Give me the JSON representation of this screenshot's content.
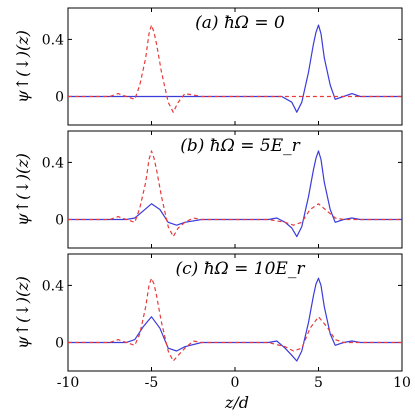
{
  "figure": {
    "xlabel": "z/d",
    "ylabel": "ψ↑(↓)(z)"
  },
  "chart_data": [
    {
      "type": "line",
      "title": "(a) ħΩ = 0",
      "ylabel": "ψ↑(↓)(z)",
      "xlabel": "",
      "xlim": [
        -10,
        10
      ],
      "ylim": [
        -0.2,
        0.62
      ],
      "xticks": [
        -10,
        -5,
        0,
        5,
        10
      ],
      "yticks": [
        0,
        0.4
      ],
      "series": [
        {
          "style": "solid",
          "color": "#3b3bdc",
          "x": [
            -10,
            -7,
            -6,
            -5,
            -4,
            -3,
            -2,
            -1,
            0,
            1,
            2,
            2.8,
            3.4,
            3.7,
            4.0,
            4.4,
            4.7,
            4.85,
            5.0,
            5.15,
            5.35,
            5.7,
            6.0,
            6.5,
            7.0,
            7.5,
            8,
            10
          ],
          "y": [
            0,
            0,
            0,
            0,
            0,
            0,
            0,
            0,
            0,
            0,
            0,
            0,
            -0.04,
            -0.11,
            -0.04,
            0.17,
            0.37,
            0.45,
            0.5,
            0.44,
            0.27,
            0.08,
            -0.02,
            0,
            0.02,
            0,
            0,
            0
          ]
        },
        {
          "style": "dashed",
          "color": "#e83a3a",
          "x": [
            -10,
            -8,
            -7.5,
            -7,
            -6.5,
            -6.0,
            -5.7,
            -5.35,
            -5.15,
            -5.0,
            -4.85,
            -4.7,
            -4.4,
            -4.0,
            -3.7,
            -3.4,
            -3.0,
            -2.5,
            -2.0,
            0,
            3,
            4,
            5,
            6,
            7,
            8,
            10
          ],
          "y": [
            0,
            0,
            0,
            0.02,
            0,
            -0.02,
            0.08,
            0.27,
            0.44,
            0.5,
            0.45,
            0.37,
            0.17,
            -0.04,
            -0.11,
            -0.04,
            0.02,
            0.01,
            0,
            0,
            0,
            0,
            0,
            0,
            0,
            0,
            0
          ]
        }
      ]
    },
    {
      "type": "line",
      "title": "(b) ħΩ = 5E_r",
      "ylabel": "ψ↑(↓)(z)",
      "xlabel": "",
      "xlim": [
        -10,
        10
      ],
      "ylim": [
        -0.2,
        0.62
      ],
      "xticks": [
        -10,
        -5,
        0,
        5,
        10
      ],
      "yticks": [
        0,
        0.4
      ],
      "series": [
        {
          "style": "solid",
          "color": "#3b3bdc",
          "x": [
            -10,
            -7,
            -6.5,
            -6.0,
            -5.5,
            -5.0,
            -4.5,
            -4.0,
            -3.5,
            -3.0,
            -2.0,
            0,
            2.0,
            2.5,
            3.0,
            3.4,
            3.7,
            4.0,
            4.4,
            4.7,
            4.85,
            5.0,
            5.15,
            5.35,
            5.7,
            6.0,
            6.5,
            7.0,
            7.5,
            8,
            10
          ],
          "y": [
            0,
            0,
            0,
            0.01,
            0.06,
            0.11,
            0.07,
            -0.02,
            -0.04,
            -0.02,
            0,
            0,
            0,
            0.01,
            -0.02,
            -0.06,
            -0.12,
            -0.05,
            0.16,
            0.35,
            0.43,
            0.48,
            0.42,
            0.26,
            0.07,
            -0.02,
            0,
            0.01,
            0,
            0,
            0
          ]
        },
        {
          "style": "dashed",
          "color": "#e83a3a",
          "x": [
            -10,
            -8,
            -7.5,
            -7,
            -6.5,
            -6.0,
            -5.7,
            -5.35,
            -5.15,
            -5.0,
            -4.85,
            -4.7,
            -4.4,
            -4.0,
            -3.7,
            -3.4,
            -3.0,
            -2.5,
            -2.0,
            0,
            2.0,
            3.0,
            3.5,
            4.0,
            4.5,
            5.0,
            5.5,
            6.0,
            6.5,
            7.0,
            10
          ],
          "y": [
            0,
            0,
            0,
            0.02,
            0,
            -0.02,
            0.08,
            0.26,
            0.42,
            0.48,
            0.43,
            0.35,
            0.16,
            -0.05,
            -0.12,
            -0.06,
            -0.02,
            0.01,
            0,
            0,
            0,
            -0.02,
            -0.04,
            -0.02,
            0.07,
            0.11,
            0.06,
            0.01,
            0,
            0,
            0
          ]
        }
      ]
    },
    {
      "type": "line",
      "title": "(c) ħΩ = 10E_r",
      "ylabel": "ψ↑(↓)(z)",
      "xlabel": "z/d",
      "xlim": [
        -10,
        10
      ],
      "ylim": [
        -0.2,
        0.62
      ],
      "xticks": [
        -10,
        -5,
        0,
        5,
        10
      ],
      "yticks": [
        0,
        0.4
      ],
      "series": [
        {
          "style": "solid",
          "color": "#3b3bdc",
          "x": [
            -10,
            -7,
            -6.5,
            -6.0,
            -5.5,
            -5.0,
            -4.5,
            -4.0,
            -3.5,
            -3.0,
            -2.0,
            0,
            2.0,
            2.5,
            3.0,
            3.4,
            3.7,
            4.0,
            4.4,
            4.7,
            4.85,
            5.0,
            5.15,
            5.35,
            5.7,
            6.0,
            6.5,
            7.0,
            7.5,
            8,
            10
          ],
          "y": [
            0,
            0,
            0,
            0.02,
            0.11,
            0.18,
            0.1,
            -0.04,
            -0.06,
            -0.03,
            0,
            0,
            0,
            0.01,
            -0.04,
            -0.09,
            -0.13,
            -0.06,
            0.14,
            0.33,
            0.41,
            0.45,
            0.4,
            0.25,
            0.06,
            -0.02,
            0,
            0.01,
            0,
            0,
            0
          ]
        },
        {
          "style": "dashed",
          "color": "#e83a3a",
          "x": [
            -10,
            -8,
            -7.5,
            -7,
            -6.5,
            -6.0,
            -5.7,
            -5.35,
            -5.15,
            -5.0,
            -4.85,
            -4.7,
            -4.4,
            -4.0,
            -3.7,
            -3.4,
            -3.0,
            -2.5,
            -2.0,
            0,
            2.0,
            3.0,
            3.5,
            4.0,
            4.5,
            5.0,
            5.5,
            6.0,
            6.5,
            7.0,
            10
          ],
          "y": [
            0,
            0,
            0,
            0.02,
            0,
            -0.02,
            0.06,
            0.25,
            0.4,
            0.45,
            0.41,
            0.33,
            0.14,
            -0.06,
            -0.13,
            -0.09,
            -0.04,
            0.01,
            0,
            0,
            0,
            -0.03,
            -0.06,
            -0.04,
            0.1,
            0.18,
            0.11,
            0.02,
            0,
            0,
            0
          ]
        }
      ]
    }
  ]
}
